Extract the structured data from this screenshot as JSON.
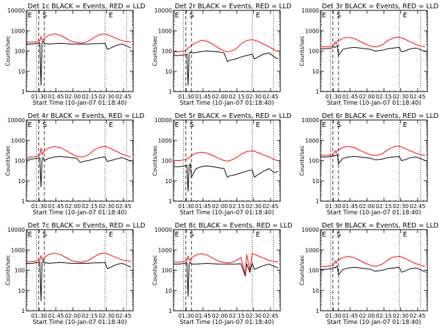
{
  "figure": {
    "ylabel": "Counts/sec",
    "xlabel": "Start Time (10-Jan-07 01:18:40)",
    "x_tick_labels": [
      "01:30",
      "01:45",
      "02:00",
      "02:15",
      "02:30",
      "02:45"
    ],
    "y_tick_labels": [
      "1",
      "10",
      "100",
      "1000",
      "10000"
    ],
    "event_markers": [
      "E",
      "S",
      "E"
    ],
    "colors": {
      "events": "#000000",
      "lld": "#ff0000",
      "background": "#ffffff"
    }
  },
  "chart_data": [
    {
      "type": "line",
      "title": "Det 1c BLACK = Events, RED = LLD",
      "xlabel": "Start Time (10-Jan-07 01:18:40)",
      "ylabel": "Counts/sec",
      "x_unit": "minutes after 01:18:40",
      "xlim": [
        0,
        95
      ],
      "ylim": [
        1,
        10000
      ],
      "y_scale": "log",
      "x": [
        0,
        5,
        10,
        12,
        13,
        14,
        15,
        16,
        20,
        25,
        30,
        35,
        40,
        45,
        48,
        50,
        55,
        60,
        65,
        70,
        72,
        75,
        80,
        85,
        90,
        93
      ],
      "series": [
        {
          "name": "BLACK = Events",
          "values": [
            220,
            220,
            240,
            260,
            2,
            250,
            300,
            240,
            220,
            230,
            240,
            230,
            220,
            220,
            220,
            220,
            220,
            230,
            230,
            240,
            120,
            140,
            190,
            220,
            170,
            140
          ]
        },
        {
          "name": "RED = LLD",
          "values": [
            270,
            270,
            290,
            320,
            520,
            330,
            350,
            430,
            600,
            700,
            600,
            430,
            300,
            260,
            250,
            250,
            300,
            450,
            650,
            700,
            640,
            550,
            420,
            320,
            290,
            270
          ]
        }
      ]
    },
    {
      "type": "line",
      "title": "Det 2r BLACK = Events, RED = LLD",
      "xlabel": "Start Time (10-Jan-07 01:18:40)",
      "ylabel": "Counts/sec",
      "x_unit": "minutes after 01:18:40",
      "xlim": [
        0,
        95
      ],
      "ylim": [
        1,
        10000
      ],
      "y_scale": "log",
      "x": [
        0,
        5,
        10,
        12,
        13,
        14,
        15,
        16,
        20,
        25,
        30,
        35,
        40,
        45,
        48,
        50,
        55,
        60,
        65,
        70,
        72,
        75,
        80,
        85,
        90,
        93
      ],
      "series": [
        {
          "name": "BLACK = Events",
          "values": [
            60,
            60,
            65,
            70,
            2,
            80,
            90,
            80,
            85,
            95,
            100,
            95,
            90,
            80,
            30,
            35,
            40,
            50,
            60,
            70,
            40,
            50,
            70,
            80,
            50,
            40
          ]
        },
        {
          "name": "RED = LLD",
          "values": [
            90,
            90,
            100,
            120,
            140,
            150,
            160,
            190,
            260,
            330,
            300,
            220,
            140,
            100,
            90,
            95,
            120,
            220,
            330,
            360,
            340,
            300,
            220,
            160,
            110,
            95
          ]
        }
      ]
    },
    {
      "type": "line",
      "title": "Det 3r BLACK = Events, RED = LLD",
      "xlabel": "Start Time (10-Jan-07 01:18:40)",
      "ylabel": "Counts/sec",
      "x_unit": "minutes after 01:18:40",
      "xlim": [
        0,
        95
      ],
      "ylim": [
        1,
        10000
      ],
      "y_scale": "log",
      "x": [
        0,
        5,
        10,
        12,
        13,
        14,
        15,
        16,
        20,
        25,
        30,
        35,
        40,
        45,
        48,
        50,
        55,
        60,
        65,
        70,
        72,
        75,
        80,
        85,
        90,
        93
      ],
      "series": [
        {
          "name": "BLACK = Events",
          "values": [
            130,
            130,
            140,
            160,
            150,
            170,
            180,
            60,
            120,
            140,
            150,
            140,
            130,
            120,
            100,
            100,
            110,
            130,
            140,
            150,
            90,
            100,
            130,
            140,
            110,
            90
          ]
        },
        {
          "name": "RED = LLD",
          "values": [
            160,
            160,
            170,
            200,
            280,
            220,
            300,
            320,
            420,
            470,
            420,
            300,
            220,
            170,
            160,
            160,
            200,
            330,
            450,
            480,
            450,
            380,
            280,
            210,
            170,
            160
          ]
        }
      ]
    },
    {
      "type": "line",
      "title": "Det 4r BLACK = Events, RED = LLD",
      "xlabel": "Start Time (10-Jan-07 01:18:40)",
      "ylabel": "Counts/sec",
      "x_unit": "minutes after 01:18:40",
      "xlim": [
        0,
        95
      ],
      "ylim": [
        1,
        10000
      ],
      "y_scale": "log",
      "x": [
        0,
        5,
        10,
        12,
        13,
        14,
        15,
        16,
        20,
        25,
        30,
        35,
        40,
        45,
        48,
        50,
        55,
        60,
        65,
        70,
        72,
        75,
        80,
        85,
        90,
        93
      ],
      "series": [
        {
          "name": "BLACK = Events",
          "values": [
            120,
            120,
            130,
            140,
            5,
            120,
            140,
            100,
            130,
            150,
            160,
            150,
            140,
            130,
            80,
            90,
            100,
            120,
            140,
            150,
            90,
            100,
            120,
            140,
            110,
            90
          ]
        },
        {
          "name": "RED = LLD",
          "values": [
            150,
            150,
            160,
            190,
            420,
            200,
            260,
            300,
            420,
            500,
            440,
            320,
            220,
            160,
            150,
            150,
            190,
            320,
            460,
            500,
            470,
            390,
            290,
            210,
            170,
            150
          ]
        }
      ]
    },
    {
      "type": "line",
      "title": "Det 5r BLACK = Events, RED = LLD",
      "xlabel": "Start Time (10-Jan-07 01:18:40)",
      "ylabel": "Counts/sec",
      "x_unit": "minutes after 01:18:40",
      "xlim": [
        0,
        95
      ],
      "ylim": [
        1,
        10000
      ],
      "y_scale": "log",
      "x": [
        0,
        5,
        10,
        12,
        13,
        14,
        15,
        16,
        20,
        25,
        30,
        35,
        40,
        45,
        48,
        50,
        55,
        60,
        65,
        70,
        72,
        75,
        80,
        85,
        90,
        93
      ],
      "series": [
        {
          "name": "BLACK = Events",
          "values": [
            50,
            50,
            55,
            60,
            3,
            60,
            70,
            15,
            40,
            50,
            55,
            50,
            45,
            40,
            15,
            18,
            20,
            25,
            30,
            35,
            15,
            20,
            30,
            40,
            25,
            30
          ]
        },
        {
          "name": "RED = LLD",
          "values": [
            100,
            100,
            110,
            120,
            130,
            140,
            150,
            180,
            230,
            260,
            230,
            180,
            130,
            100,
            95,
            100,
            130,
            200,
            280,
            300,
            290,
            250,
            190,
            150,
            110,
            100
          ]
        }
      ]
    },
    {
      "type": "line",
      "title": "Det 6r BLACK = Events, RED = LLD",
      "xlabel": "Start Time (10-Jan-07 01:18:40)",
      "ylabel": "Counts/sec",
      "x_unit": "minutes after 01:18:40",
      "xlim": [
        0,
        95
      ],
      "ylim": [
        1,
        10000
      ],
      "y_scale": "log",
      "x": [
        0,
        5,
        10,
        12,
        13,
        14,
        15,
        16,
        20,
        25,
        30,
        35,
        40,
        45,
        48,
        50,
        55,
        60,
        65,
        70,
        72,
        75,
        80,
        85,
        90,
        93
      ],
      "series": [
        {
          "name": "BLACK = Events",
          "values": [
            150,
            150,
            160,
            180,
            170,
            190,
            200,
            70,
            130,
            150,
            160,
            150,
            140,
            130,
            110,
            110,
            120,
            140,
            150,
            160,
            100,
            110,
            140,
            150,
            120,
            100
          ]
        },
        {
          "name": "RED = LLD",
          "values": [
            180,
            180,
            190,
            230,
            300,
            240,
            320,
            340,
            450,
            500,
            450,
            320,
            240,
            190,
            180,
            180,
            220,
            350,
            480,
            520,
            480,
            400,
            300,
            230,
            190,
            180
          ]
        }
      ]
    },
    {
      "type": "line",
      "title": "Det 7c BLACK = Events, RED = LLD",
      "xlabel": "Start Time (10-Jan-07 01:18:40)",
      "ylabel": "Counts/sec",
      "x_unit": "minutes after 01:18:40",
      "xlim": [
        0,
        95
      ],
      "ylim": [
        1,
        10000
      ],
      "y_scale": "log",
      "x": [
        0,
        5,
        10,
        12,
        13,
        14,
        15,
        16,
        20,
        25,
        30,
        35,
        40,
        45,
        48,
        50,
        55,
        60,
        65,
        70,
        72,
        75,
        80,
        85,
        90,
        93
      ],
      "series": [
        {
          "name": "BLACK = Events",
          "values": [
            220,
            220,
            240,
            260,
            3,
            250,
            300,
            240,
            220,
            230,
            240,
            230,
            220,
            220,
            220,
            220,
            220,
            230,
            230,
            240,
            120,
            140,
            190,
            220,
            170,
            140
          ]
        },
        {
          "name": "RED = LLD",
          "values": [
            270,
            270,
            290,
            320,
            520,
            330,
            350,
            430,
            600,
            700,
            600,
            430,
            300,
            260,
            250,
            250,
            300,
            450,
            650,
            700,
            640,
            550,
            420,
            320,
            290,
            270
          ]
        }
      ]
    },
    {
      "type": "line",
      "title": "Det 8c BLACK = Events, RED = LLD",
      "xlabel": "Start Time (10-Jan-07 01:18:40)",
      "ylabel": "Counts/sec",
      "x_unit": "minutes after 01:18:40",
      "xlim": [
        0,
        95
      ],
      "ylim": [
        1,
        10000
      ],
      "y_scale": "log",
      "x": [
        0,
        5,
        10,
        12,
        13,
        14,
        15,
        16,
        20,
        25,
        30,
        35,
        40,
        45,
        48,
        50,
        55,
        60,
        64,
        65,
        68,
        70,
        72,
        75,
        80,
        85,
        90,
        93
      ],
      "series": [
        {
          "name": "BLACK = Events",
          "values": [
            200,
            200,
            220,
            240,
            5,
            220,
            260,
            200,
            200,
            210,
            220,
            210,
            200,
            200,
            200,
            200,
            200,
            210,
            50,
            210,
            80,
            220,
            110,
            130,
            170,
            200,
            150,
            130
          ]
        },
        {
          "name": "RED = LLD",
          "values": [
            250,
            250,
            270,
            300,
            500,
            310,
            330,
            400,
            560,
            650,
            560,
            400,
            280,
            240,
            230,
            230,
            280,
            420,
            60,
            600,
            100,
            650,
            600,
            520,
            400,
            300,
            270,
            250
          ]
        }
      ]
    },
    {
      "type": "line",
      "title": "Det 9r BLACK = Events, RED = LLD",
      "xlabel": "Start Time (10-Jan-07 01:18:40)",
      "ylabel": "Counts/sec",
      "x_unit": "minutes after 01:18:40",
      "xlim": [
        0,
        95
      ],
      "ylim": [
        1,
        10000
      ],
      "y_scale": "log",
      "x": [
        0,
        5,
        10,
        12,
        13,
        14,
        15,
        16,
        20,
        25,
        30,
        35,
        40,
        45,
        48,
        50,
        55,
        60,
        65,
        70,
        72,
        75,
        80,
        85,
        90,
        93
      ],
      "series": [
        {
          "name": "BLACK = Events",
          "values": [
            110,
            110,
            120,
            140,
            130,
            150,
            160,
            60,
            110,
            130,
            140,
            130,
            120,
            110,
            90,
            90,
            100,
            120,
            130,
            140,
            80,
            90,
            120,
            130,
            100,
            80
          ]
        },
        {
          "name": "RED = LLD",
          "values": [
            150,
            150,
            170,
            200,
            280,
            220,
            300,
            320,
            420,
            480,
            420,
            300,
            220,
            170,
            160,
            160,
            200,
            330,
            450,
            480,
            450,
            380,
            280,
            210,
            170,
            150
          ]
        }
      ]
    }
  ]
}
